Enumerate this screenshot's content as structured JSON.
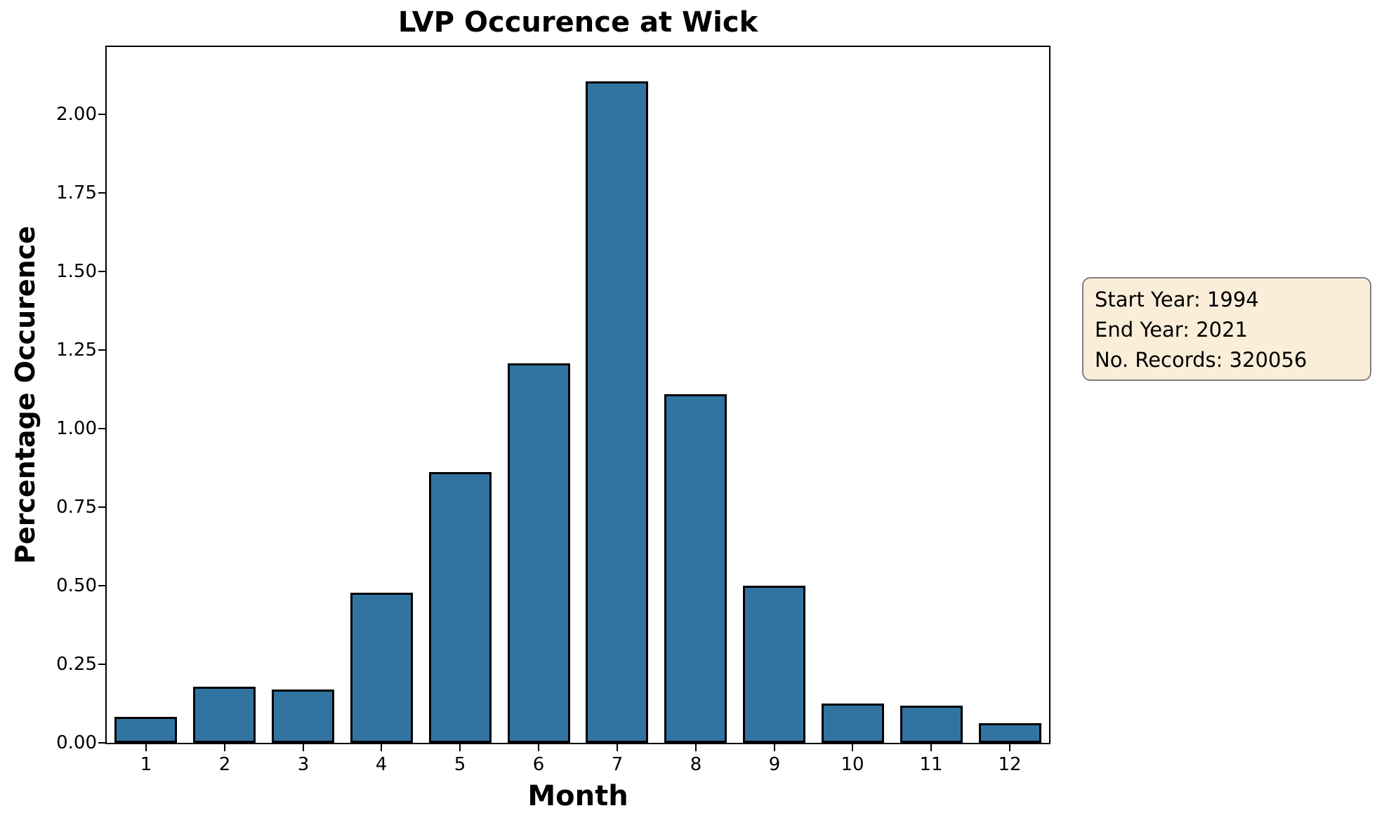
{
  "figure": {
    "title": "LVP Occurence at Wick"
  },
  "chart_data": {
    "type": "bar",
    "title": "LVP Occurence at Wick",
    "xlabel": "Month",
    "ylabel": "Percentage Occurence",
    "categories": [
      "1",
      "2",
      "3",
      "4",
      "5",
      "6",
      "7",
      "8",
      "9",
      "10",
      "11",
      "12"
    ],
    "values": [
      0.082,
      0.179,
      0.169,
      0.478,
      0.862,
      1.207,
      2.105,
      1.109,
      0.5,
      0.125,
      0.118,
      0.062
    ],
    "ylim": [
      0,
      2.215
    ],
    "yticks": [
      0.0,
      0.25,
      0.5,
      0.75,
      1.0,
      1.25,
      1.5,
      1.75,
      2.0
    ],
    "ytick_labels": [
      "0.00",
      "0.25",
      "0.50",
      "0.75",
      "1.00",
      "1.25",
      "1.50",
      "1.75",
      "2.00"
    ],
    "grid": false,
    "legend_position": "none",
    "bar_color": "#3274a1",
    "bar_edge_color": "#000000"
  },
  "annotation": {
    "lines": [
      "Start Year: 1994",
      "End Year: 2021",
      "No. Records: 320056"
    ],
    "bg_color": "#faeed9",
    "border_color": "#808080"
  }
}
